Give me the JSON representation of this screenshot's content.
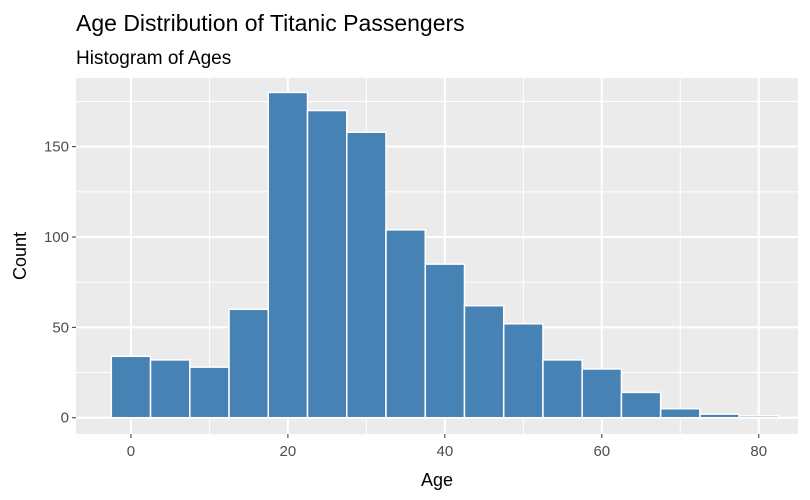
{
  "chart_data": {
    "type": "bar",
    "title": "Age Distribution of Titanic Passengers",
    "subtitle": "Histogram of Ages",
    "xlabel": "Age",
    "ylabel": "Count",
    "bin_width": 5,
    "bins": [
      {
        "start": -2.5,
        "end": 2.5,
        "count": 34
      },
      {
        "start": 2.5,
        "end": 7.5,
        "count": 32
      },
      {
        "start": 7.5,
        "end": 12.5,
        "count": 28
      },
      {
        "start": 12.5,
        "end": 17.5,
        "count": 60
      },
      {
        "start": 17.5,
        "end": 22.5,
        "count": 180
      },
      {
        "start": 22.5,
        "end": 27.5,
        "count": 170
      },
      {
        "start": 27.5,
        "end": 32.5,
        "count": 158
      },
      {
        "start": 32.5,
        "end": 37.5,
        "count": 104
      },
      {
        "start": 37.5,
        "end": 42.5,
        "count": 85
      },
      {
        "start": 42.5,
        "end": 47.5,
        "count": 62
      },
      {
        "start": 47.5,
        "end": 52.5,
        "count": 52
      },
      {
        "start": 52.5,
        "end": 57.5,
        "count": 32
      },
      {
        "start": 57.5,
        "end": 62.5,
        "count": 27
      },
      {
        "start": 62.5,
        "end": 67.5,
        "count": 14
      },
      {
        "start": 67.5,
        "end": 72.5,
        "count": 5
      },
      {
        "start": 72.5,
        "end": 77.5,
        "count": 2
      },
      {
        "start": 77.5,
        "end": 82.5,
        "count": 1
      }
    ],
    "xlim": [
      -7,
      85
    ],
    "ylim": [
      -9,
      188
    ],
    "x_ticks": [
      0,
      20,
      40,
      60,
      80
    ],
    "x_minor_ticks": [
      10,
      30,
      50,
      70
    ],
    "y_ticks": [
      0,
      50,
      100,
      150
    ],
    "y_minor_ticks": [
      25,
      75,
      125,
      175
    ],
    "grid": true,
    "legend": "none",
    "colors": {
      "bar_fill": "#4682b4",
      "bar_stroke": "#ffffff",
      "panel_background": "#ebebeb",
      "grid": "#ffffff",
      "tick_label": "#4d4d4d",
      "text": "#000000"
    }
  }
}
